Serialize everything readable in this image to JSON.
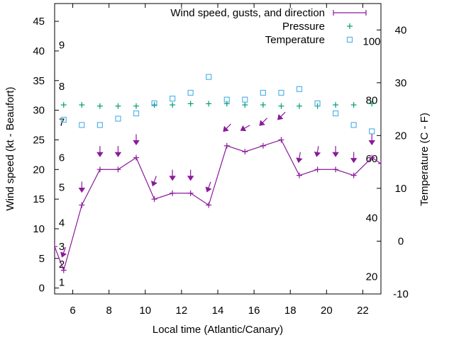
{
  "chart_data": {
    "type": "line",
    "xlabel": "Local time (Atlantic/Canary)",
    "ylabel_left": "Wind speed (kt - Beaufort)",
    "ylabel_right": "Temperature (C - F)",
    "xlim": [
      5,
      23
    ],
    "ylim_left": [
      -1,
      48
    ],
    "ylim_right": [
      -10,
      45
    ],
    "x_ticks": [
      "6",
      "8",
      "10",
      "12",
      "14",
      "16",
      "18",
      "20",
      "22"
    ],
    "y_left_ticks": [
      "0",
      "5",
      "10",
      "15",
      "20",
      "25",
      "30",
      "35",
      "40",
      "45"
    ],
    "y_right_ticks": [
      "-10",
      "0",
      "10",
      "20",
      "30",
      "40"
    ],
    "beaufort_labels": [
      {
        "label": "1",
        "wind": 1
      },
      {
        "label": "2",
        "wind": 4
      },
      {
        "label": "3",
        "wind": 7
      },
      {
        "label": "4",
        "wind": 11
      },
      {
        "label": "5",
        "wind": 17
      },
      {
        "label": "6",
        "wind": 22
      },
      {
        "label": "7",
        "wind": 28
      },
      {
        "label": "8",
        "wind": 34
      },
      {
        "label": "9",
        "wind": 41
      }
    ],
    "fahrenheit_labels": [
      {
        "label": "20",
        "temp": -6.7
      },
      {
        "label": "40",
        "temp": 4.4
      },
      {
        "label": "60",
        "temp": 15.6
      },
      {
        "label": "80",
        "temp": 26.7
      },
      {
        "label": "100",
        "temp": 37.8
      }
    ],
    "legend": {
      "position": "top-right",
      "entries": [
        "Wind speed, gusts, and direction",
        "Pressure",
        "Temperature"
      ]
    },
    "colors": {
      "wind": "#8b1a9b",
      "gust": "#8b1a9b",
      "pressure": "#009e73",
      "temperature": "#56b4e9"
    },
    "series": [
      {
        "name": "Wind speed, gusts, and direction",
        "x": [
          5,
          5.5,
          6.5,
          7.5,
          8.5,
          9.5,
          10.5,
          11.5,
          12.5,
          13.5,
          14.5,
          15.5,
          16.5,
          17.5,
          18.5,
          19.5,
          20.5,
          21.5,
          22.5,
          23
        ],
        "y": [
          7,
          3,
          14,
          20,
          20,
          22,
          15,
          16,
          16,
          14,
          24,
          23,
          24,
          25,
          19,
          20,
          20,
          19,
          22,
          21
        ]
      },
      {
        "name": "Pressure",
        "x": [
          5.5,
          6.5,
          7.5,
          8.5,
          9.5,
          10.5,
          11.5,
          12.5,
          13.5,
          14.5,
          15.5,
          16.5,
          17.5,
          18.5,
          19.5,
          20.5,
          21.5,
          22.5
        ],
        "y": [
          30.9,
          30.9,
          30.7,
          30.7,
          30.7,
          30.9,
          30.9,
          31.1,
          31.1,
          31.1,
          30.9,
          30.9,
          30.7,
          30.7,
          30.7,
          30.9,
          30.9,
          31.1
        ]
      },
      {
        "name": "Temperature",
        "x": [
          5.5,
          6.5,
          7.5,
          8.5,
          9.5,
          10.5,
          11.5,
          12.5,
          13.5,
          14.5,
          15.5,
          16.5,
          17.5,
          18.5,
          19.5,
          20.5,
          21.5,
          22.5
        ],
        "y": [
          23,
          22,
          22,
          23.2,
          24.2,
          26.1,
          27,
          28.1,
          31.1,
          26.8,
          26.8,
          28.1,
          28.1,
          28.8,
          26.1,
          24.2,
          22,
          20.8
        ]
      }
    ],
    "gusts": {
      "x": [
        5.5,
        6.5,
        7.5,
        8.5,
        9.5,
        10.5,
        11.5,
        12.5,
        13.5,
        14.5,
        15.5,
        16.5,
        17.5,
        18.5,
        19.5,
        20.5,
        21.5,
        22.5
      ],
      "y": [
        6,
        17,
        23,
        23,
        25,
        18,
        19,
        19,
        17,
        27,
        27,
        28,
        29,
        22,
        23,
        23,
        22,
        25
      ],
      "direction_deg": [
        20,
        0,
        0,
        0,
        0,
        20,
        0,
        0,
        20,
        45,
        60,
        45,
        45,
        10,
        10,
        0,
        0,
        0
      ]
    }
  }
}
